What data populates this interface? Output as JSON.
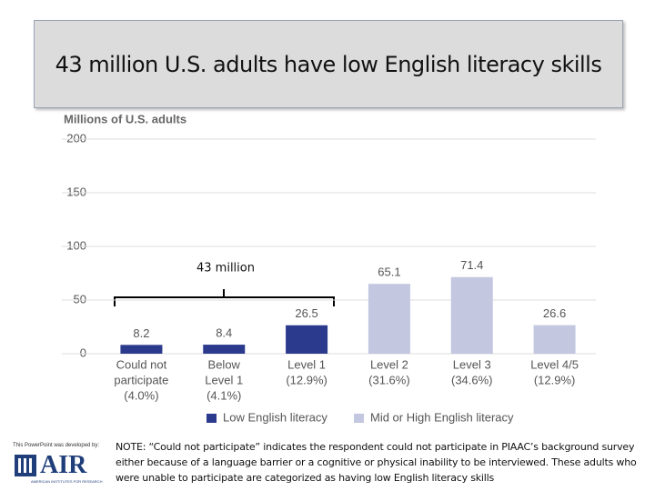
{
  "slide": {
    "title": "43 million U.S. adults have low English literacy skills",
    "note": "NOTE: “Could not participate” indicates the respondent could not participate in PIAAC’s background survey either because of a language barrier or a cognitive or physical inability to be interviewed. These adults who were unable to participate are categorized as having low English literacy skills",
    "logo": {
      "caption": "This PowerPoint was developed by:",
      "name": "AIR",
      "subtitle": "AMERICAN INSTITUTES FOR RESEARCH"
    }
  },
  "chart_data": {
    "type": "bar",
    "y_label": "Millions of U.S. adults",
    "annotation": "43 million",
    "categories": [
      [
        "Could not",
        "participate",
        "(4.0%)"
      ],
      [
        "Below",
        "Level 1",
        "(4.1%)"
      ],
      [
        "Level 1",
        "(12.9%)"
      ],
      [
        "Level 2",
        "(31.6%)"
      ],
      [
        "Level 3",
        "(34.6%)"
      ],
      [
        "Level 4/5",
        "(12.9%)"
      ]
    ],
    "series": [
      {
        "name": "Low English literacy",
        "color": "#2b3a8c",
        "values": [
          8.2,
          8.4,
          26.5,
          null,
          null,
          null
        ]
      },
      {
        "name": "Mid or High English literacy",
        "color": "#c3c7e0",
        "values": [
          null,
          null,
          null,
          65.1,
          71.4,
          26.6
        ]
      }
    ],
    "ylim": [
      0,
      200
    ],
    "yticks": [
      0,
      50,
      100,
      150,
      200
    ],
    "grid": true
  }
}
